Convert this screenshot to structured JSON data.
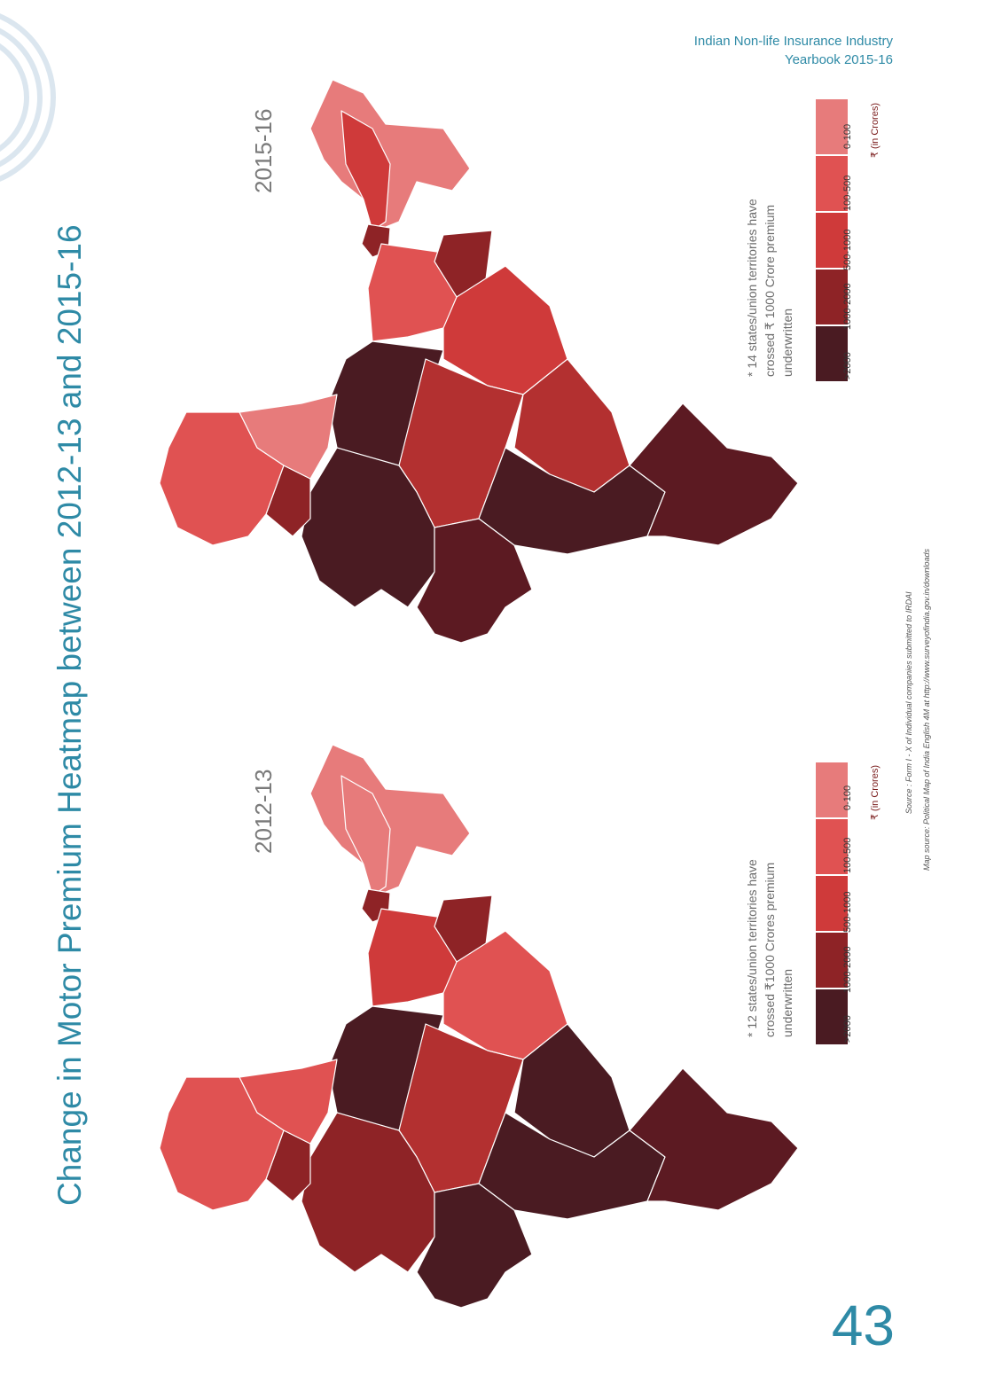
{
  "header": {
    "line1": "Indian Non-life Insurance Industry",
    "line2": "Yearbook 2015-16"
  },
  "title": "Change in Motor Premium Heatmap between 2012-13 and 2015-16",
  "maps": [
    {
      "label": "2015-16",
      "note": "* 14 states/union territories have crossed ₹ 1000 Crore premium underwritten"
    },
    {
      "label": "2012-13",
      "note": "* 12 states/union territories have crossed ₹1000 Crores premium underwritten"
    }
  ],
  "legend": {
    "items": [
      "0-100",
      "100-500",
      "500-1000",
      "1000-2000",
      ">2000"
    ],
    "colors": [
      "#e77b7b",
      "#e05252",
      "#cf3a3a",
      "#8e2326",
      "#4a1b22"
    ],
    "unit": "₹ (in Crores)"
  },
  "source": {
    "line1": "Source : Form I - X of Individual companies submitted to IRDAI",
    "line2": "Map source: Political Map of India English 4M at http://www.surveyofindia.gov.in/downloads"
  },
  "page_number": "43",
  "colors": {
    "accent": "#2e8aa6"
  }
}
